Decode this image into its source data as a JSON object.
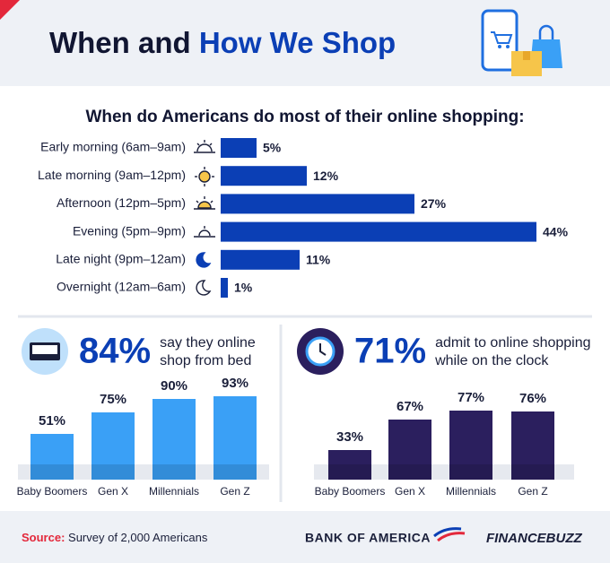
{
  "header": {
    "title_start": "When and",
    "title_highlight": "How We Shop"
  },
  "chart_data": [
    {
      "type": "hbar",
      "title": "When do Americans do most of their online shopping:",
      "categories": [
        "Early morning (6am–9am)",
        "Late morning (9am–12pm)",
        "Afternoon (12pm–5pm)",
        "Evening (5pm–9pm)",
        "Late night (9pm–12am)",
        "Overnight (12am–6am)"
      ],
      "values": [
        5,
        12,
        27,
        44,
        11,
        1
      ],
      "value_labels": [
        "5%",
        "12%",
        "27%",
        "44%",
        "11%",
        "1%"
      ],
      "color": "#0b3fb5"
    },
    {
      "type": "bar",
      "headline": "84%",
      "subtitle_lines": [
        "say they online",
        "shop from bed"
      ],
      "categories": [
        "Baby Boomers",
        "Gen X",
        "Millennials",
        "Gen Z"
      ],
      "values": [
        51,
        75,
        90,
        93
      ],
      "value_labels": [
        "51%",
        "75%",
        "90%",
        "93%"
      ],
      "color": "#3aa0f6",
      "headline_color": "#0b3fb5"
    },
    {
      "type": "bar",
      "headline": "71%",
      "subtitle_lines": [
        "admit to online shopping",
        "while on the clock"
      ],
      "categories": [
        "Baby Boomers",
        "Gen X",
        "Millennials",
        "Gen Z"
      ],
      "values": [
        33,
        67,
        77,
        76
      ],
      "value_labels": [
        "33%",
        "67%",
        "77%",
        "76%"
      ],
      "color": "#2b1f5e",
      "headline_color": "#0b3fb5"
    }
  ],
  "footer": {
    "source_label": "Source:",
    "source_text": "Survey of 2,000 Americans",
    "brand_1": "BANK OF AMERICA",
    "brand_2": "FINANCEBUZZ"
  }
}
